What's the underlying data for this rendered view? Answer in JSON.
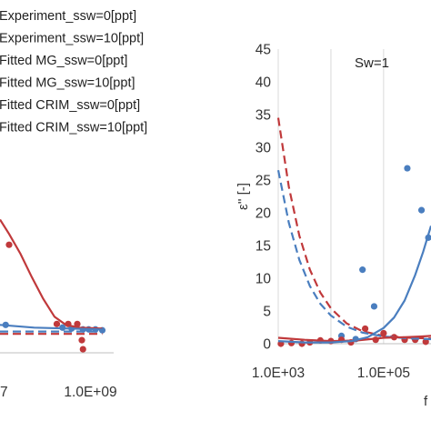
{
  "chart_data": [
    {
      "type": "scatter",
      "panel": "left (partially cropped)",
      "legend": {
        "position": "top-left",
        "entries": [
          "Experiment_ssw=0[ppt]",
          "Experiment_ssw=10[ppt]",
          "Fitted MG_ssw=0[ppt]",
          "Fitted MG_ssw=10[ppt]",
          "Fitted CRIM_ssw=0[ppt]",
          "Fitted CRIM_ssw=10[ppt]"
        ]
      },
      "x_tick_labels": [
        "7",
        "1.0E+09"
      ],
      "x_tick_fracs": [
        0.0,
        0.82
      ],
      "y_tick_labels": [],
      "colors": {
        "ssw0": "#4a7ebf",
        "ssw10": "#c0393b"
      },
      "series": [
        {
          "name": "Experiment_ssw=10[ppt]",
          "style": "markers",
          "color": "#c0393b",
          "points": [
            [
              0.08,
              0.6
            ],
            [
              0.5,
              0.16
            ],
            [
              0.6,
              0.16
            ],
            [
              0.68,
              0.16
            ],
            [
              0.72,
              0.07
            ],
            [
              0.73,
              0.02
            ]
          ]
        },
        {
          "name": "Experiment_ssw=0[ppt]",
          "style": "markers",
          "color": "#4a7ebf",
          "points": [
            [
              0.05,
              0.155
            ],
            [
              0.55,
              0.14
            ],
            [
              0.63,
              0.135
            ],
            [
              0.73,
              0.13
            ],
            [
              0.78,
              0.13
            ],
            [
              0.84,
              0.13
            ],
            [
              0.9,
              0.125
            ]
          ]
        },
        {
          "name": "Fitted MG_ssw=10[ppt]",
          "style": "solid",
          "color": "#c0393b",
          "points": [
            [
              0.0,
              0.74
            ],
            [
              0.08,
              0.66
            ],
            [
              0.18,
              0.55
            ],
            [
              0.28,
              0.42
            ],
            [
              0.38,
              0.3
            ],
            [
              0.48,
              0.2
            ],
            [
              0.58,
              0.155
            ],
            [
              0.7,
              0.14
            ],
            [
              0.9,
              0.135
            ]
          ]
        },
        {
          "name": "Fitted MG_ssw=0[ppt]",
          "style": "solid",
          "color": "#4a7ebf",
          "points": [
            [
              0.0,
              0.155
            ],
            [
              0.3,
              0.14
            ],
            [
              0.6,
              0.135
            ],
            [
              0.9,
              0.13
            ]
          ]
        },
        {
          "name": "Fitted CRIM_ssw=0[ppt]",
          "style": "dashed",
          "color": "#4a7ebf",
          "points": [
            [
              0.0,
              0.118
            ],
            [
              0.9,
              0.118
            ]
          ]
        },
        {
          "name": "Fitted CRIM_ssw=10[ppt]",
          "style": "dashed",
          "color": "#c0393b",
          "points": [
            [
              0.0,
              0.105
            ],
            [
              0.9,
              0.105
            ]
          ]
        }
      ]
    },
    {
      "type": "scatter",
      "panel": "right (partially cropped)",
      "annotation": "Sw=1",
      "ylabel": "ε'' [-]",
      "xlabel": "f",
      "x_axis": "log10 frequency",
      "xlim": [
        3,
        5.9
      ],
      "ylim": [
        0,
        45
      ],
      "y_ticks": [
        0,
        5,
        10,
        15,
        20,
        25,
        30,
        35,
        40,
        45
      ],
      "x_tick_values": [
        3,
        5
      ],
      "x_tick_labels": [
        "1.0E+03",
        "1.0E+05"
      ],
      "grid": "vertical",
      "colors": {
        "ssw0": "#4a7ebf",
        "ssw10": "#c0393b"
      },
      "series": [
        {
          "name": "Experiment_ssw=0[ppt]",
          "style": "markers",
          "color": "#4a7ebf",
          "points": [
            [
              4.6,
              11.3
            ],
            [
              4.82,
              5.7
            ],
            [
              5.45,
              26.8
            ],
            [
              5.72,
              20.4
            ],
            [
              5.85,
              16.2
            ],
            [
              4.2,
              1.2
            ],
            [
              4.47,
              0.7
            ]
          ]
        },
        {
          "name": "Experiment_ssw=10[ppt]",
          "style": "markers",
          "color": "#c0393b",
          "points": [
            [
              3.05,
              0.0
            ],
            [
              3.25,
              0.1
            ],
            [
              3.45,
              0.0
            ],
            [
              3.6,
              0.2
            ],
            [
              3.8,
              0.5
            ],
            [
              4.0,
              0.4
            ],
            [
              4.2,
              0.6
            ],
            [
              4.38,
              0.2
            ],
            [
              4.65,
              2.3
            ],
            [
              4.85,
              0.6
            ],
            [
              5.0,
              1.6
            ],
            [
              5.2,
              1.0
            ],
            [
              5.4,
              0.6
            ],
            [
              5.6,
              0.6
            ],
            [
              5.8,
              0.3
            ]
          ]
        },
        {
          "name": "Fitted CRIM_ssw=10[ppt]",
          "style": "dashed",
          "color": "#c0393b",
          "points": [
            [
              3.0,
              34.5
            ],
            [
              3.2,
              24.0
            ],
            [
              3.4,
              16.5
            ],
            [
              3.6,
              11.3
            ],
            [
              3.8,
              7.8
            ],
            [
              4.0,
              5.4
            ],
            [
              4.3,
              3.1
            ],
            [
              4.6,
              1.9
            ],
            [
              5.0,
              1.2
            ],
            [
              5.5,
              0.9
            ],
            [
              5.9,
              0.8
            ]
          ]
        },
        {
          "name": "Fitted CRIM_ssw=0[ppt]",
          "style": "dashed",
          "color": "#4a7ebf",
          "points": [
            [
              3.0,
              26.5
            ],
            [
              3.2,
              18.5
            ],
            [
              3.4,
              12.8
            ],
            [
              3.6,
              8.8
            ],
            [
              3.8,
              6.1
            ],
            [
              4.0,
              4.3
            ],
            [
              4.3,
              2.6
            ],
            [
              4.6,
              1.7
            ],
            [
              5.0,
              1.1
            ],
            [
              5.5,
              0.8
            ],
            [
              5.9,
              0.7
            ]
          ]
        },
        {
          "name": "Fitted MG_ssw=10[ppt]",
          "style": "solid",
          "color": "#c0393b",
          "points": [
            [
              3.0,
              0.9
            ],
            [
              3.5,
              0.6
            ],
            [
              4.0,
              0.4
            ],
            [
              4.5,
              0.5
            ],
            [
              5.0,
              0.9
            ],
            [
              5.4,
              1.0
            ],
            [
              5.7,
              1.1
            ],
            [
              5.9,
              1.2
            ]
          ]
        },
        {
          "name": "Fitted MG_ssw=0[ppt]",
          "style": "solid",
          "color": "#4a7ebf",
          "points": [
            [
              3.0,
              0.4
            ],
            [
              3.5,
              0.2
            ],
            [
              4.0,
              0.2
            ],
            [
              4.4,
              0.4
            ],
            [
              4.7,
              1.0
            ],
            [
              5.0,
              2.4
            ],
            [
              5.2,
              4.0
            ],
            [
              5.4,
              6.6
            ],
            [
              5.6,
              10.5
            ],
            [
              5.75,
              14.0
            ],
            [
              5.9,
              18.0
            ]
          ]
        }
      ]
    }
  ]
}
